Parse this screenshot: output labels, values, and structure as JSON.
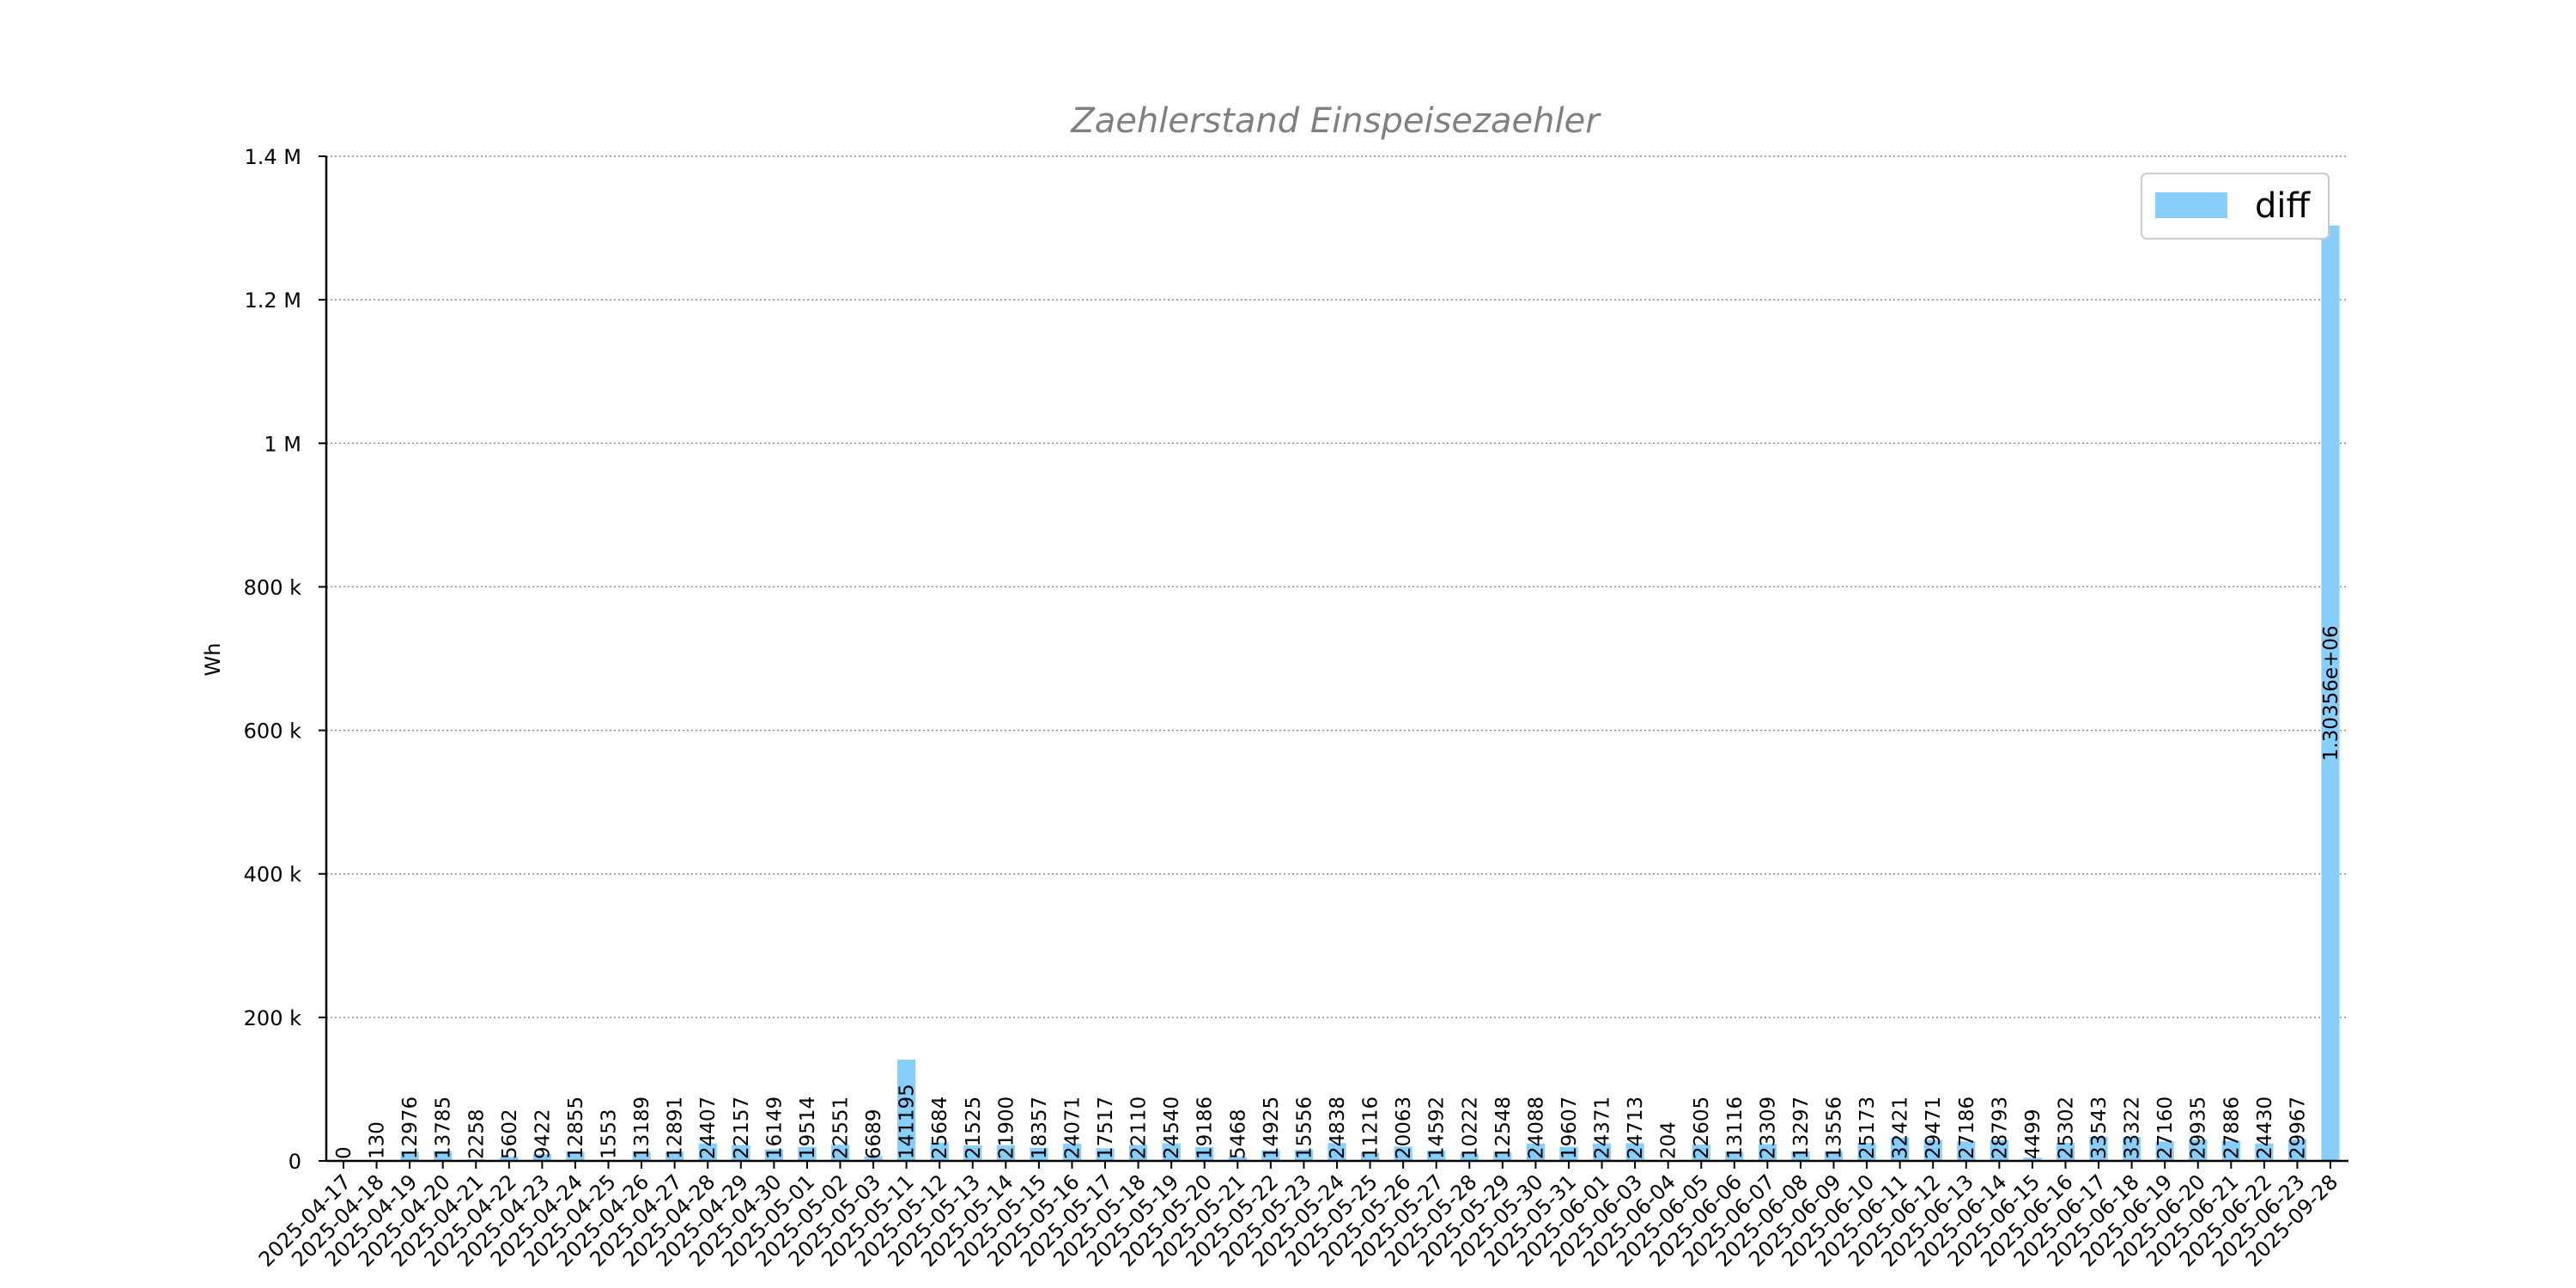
{
  "chart_data": {
    "type": "bar",
    "title": "Zaehlerstand Einspeisezaehler",
    "xlabel": "",
    "ylabel": "Wh",
    "ylim": [
      0,
      1400000
    ],
    "y_ticks": [
      0,
      200000,
      400000,
      600000,
      800000,
      1000000,
      1200000,
      1400000
    ],
    "y_tick_labels": [
      "0",
      "200 k",
      "400 k",
      "600 k",
      "800 k",
      "1 M",
      "1.2 M",
      "1.4 M"
    ],
    "grid": true,
    "legend_position": "top-right",
    "bar_color": "#87cefa",
    "categories": [
      "2025-04-17",
      "2025-04-18",
      "2025-04-19",
      "2025-04-20",
      "2025-04-21",
      "2025-04-22",
      "2025-04-23",
      "2025-04-24",
      "2025-04-25",
      "2025-04-26",
      "2025-04-27",
      "2025-04-28",
      "2025-04-29",
      "2025-04-30",
      "2025-05-01",
      "2025-05-02",
      "2025-05-03",
      "2025-05-11",
      "2025-05-12",
      "2025-05-13",
      "2025-05-14",
      "2025-05-15",
      "2025-05-16",
      "2025-05-17",
      "2025-05-18",
      "2025-05-19",
      "2025-05-20",
      "2025-05-21",
      "2025-05-22",
      "2025-05-23",
      "2025-05-24",
      "2025-05-25",
      "2025-05-26",
      "2025-05-27",
      "2025-05-28",
      "2025-05-29",
      "2025-05-30",
      "2025-05-31",
      "2025-06-01",
      "2025-06-03",
      "2025-06-04",
      "2025-06-05",
      "2025-06-06",
      "2025-06-07",
      "2025-06-08",
      "2025-06-09",
      "2025-06-10",
      "2025-06-11",
      "2025-06-12",
      "2025-06-13",
      "2025-06-14",
      "2025-06-15",
      "2025-06-16",
      "2025-06-17",
      "2025-06-18",
      "2025-06-19",
      "2025-06-20",
      "2025-06-21",
      "2025-06-22",
      "2025-06-23",
      "2025-09-28"
    ],
    "series": [
      {
        "name": "diff",
        "values": [
          0,
          130,
          12976,
          13785,
          2258,
          5602,
          9422,
          12855,
          1553,
          13189,
          12891,
          24407,
          22157,
          16149,
          19514,
          22551,
          6689,
          141195,
          25684,
          21525,
          21900,
          18357,
          24071,
          17517,
          22110,
          24540,
          19186,
          5468,
          14925,
          15556,
          24838,
          11216,
          20063,
          14592,
          10222,
          12548,
          24088,
          19607,
          24371,
          24713,
          204,
          22605,
          13116,
          23309,
          13297,
          13556,
          25173,
          32421,
          29471,
          27186,
          28793,
          4499,
          25302,
          33543,
          33322,
          27160,
          29935,
          27886,
          24430,
          29967,
          1303560
        ]
      }
    ],
    "value_labels": [
      "0",
      "130",
      "12976",
      "13785",
      "2258",
      "5602",
      "9422",
      "12855",
      "1553",
      "13189",
      "12891",
      "24407",
      "22157",
      "16149",
      "19514",
      "22551",
      "6689",
      "141195",
      "25684",
      "21525",
      "21900",
      "18357",
      "24071",
      "17517",
      "22110",
      "24540",
      "19186",
      "5468",
      "14925",
      "15556",
      "24838",
      "11216",
      "20063",
      "14592",
      "10222",
      "12548",
      "24088",
      "19607",
      "24371",
      "24713",
      "204",
      "22605",
      "13116",
      "23309",
      "13297",
      "13556",
      "25173",
      "32421",
      "29471",
      "27186",
      "28793",
      "4499",
      "25302",
      "33543",
      "33322",
      "27160",
      "29935",
      "27886",
      "24430",
      "29967",
      "1.30356e+06"
    ]
  }
}
